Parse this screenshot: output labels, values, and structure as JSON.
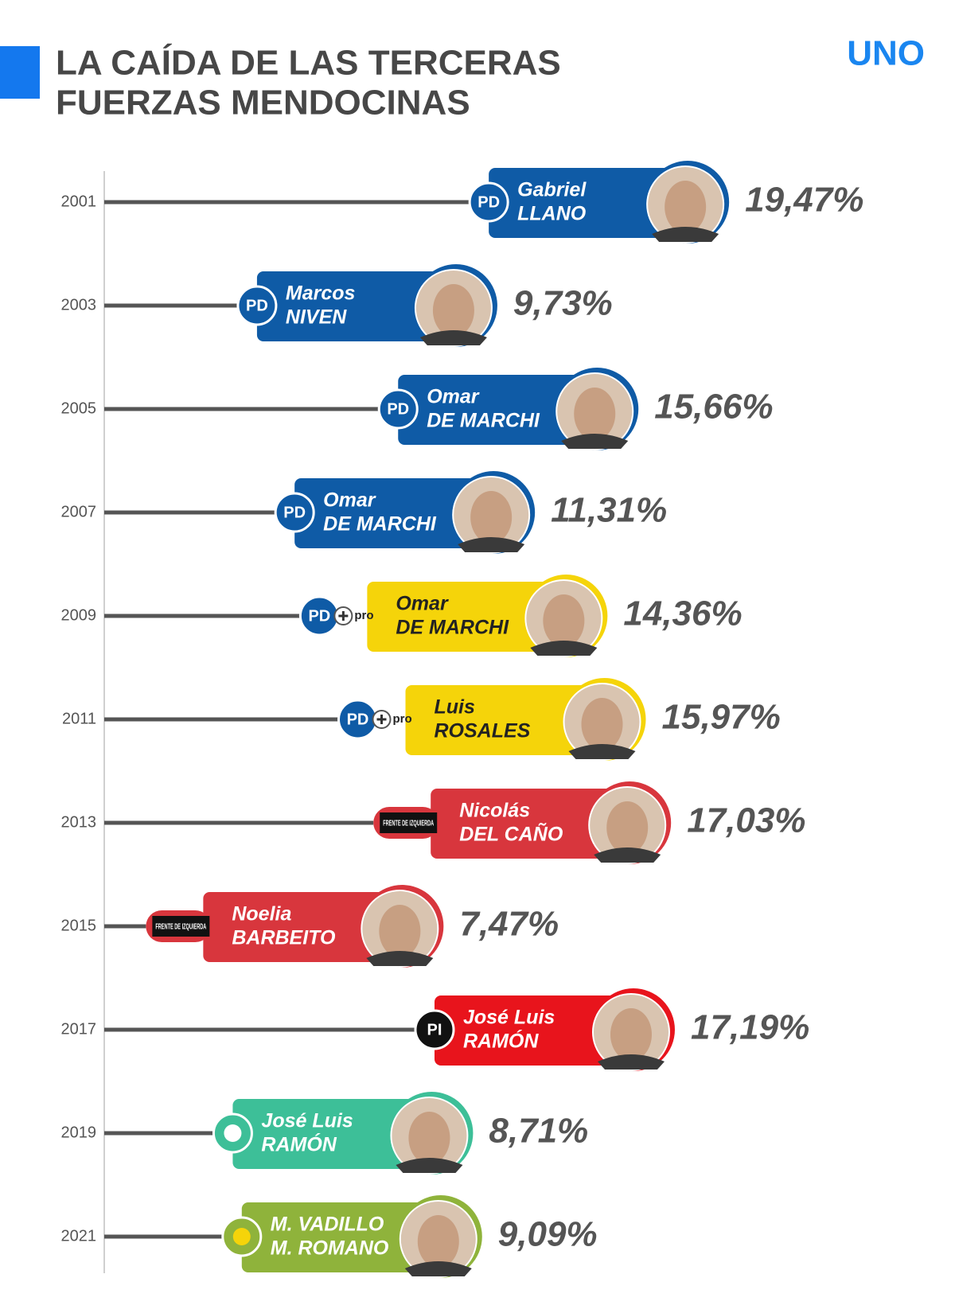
{
  "chart_data": {
    "type": "bar",
    "orientation": "horizontal",
    "title": [
      "LA CAÍDA DE LAS TERCERAS",
      "FUERZAS MENDOCINAS"
    ],
    "brand": "UNO",
    "categories": [
      "2001",
      "2003",
      "2005",
      "2007",
      "2009",
      "2011",
      "2013",
      "2015",
      "2017",
      "2019",
      "2021"
    ],
    "values": [
      19.47,
      9.73,
      15.66,
      11.31,
      14.36,
      15.97,
      17.03,
      7.47,
      17.19,
      8.71,
      9.09
    ],
    "value_labels": [
      "19,47%",
      "9,73%",
      "15,66%",
      "11,31%",
      "14,36%",
      "15,97%",
      "17,03%",
      "7,47%",
      "17,19%",
      "8,71%",
      "9,09%"
    ],
    "candidates": [
      [
        "Gabriel",
        "LLANO"
      ],
      [
        "Marcos",
        "NIVEN"
      ],
      [
        "Omar",
        "DE MARCHI"
      ],
      [
        "Omar",
        "DE MARCHI"
      ],
      [
        "Omar",
        "DE MARCHI"
      ],
      [
        "Luis",
        "ROSALES"
      ],
      [
        "Nicolás",
        "DEL CAÑO"
      ],
      [
        "Noelia",
        "BARBEITO"
      ],
      [
        "José Luis",
        "RAMÓN"
      ],
      [
        "José Luis",
        "RAMÓN"
      ],
      [
        "M. VADILLO",
        "M. ROMANO"
      ]
    ],
    "logos": [
      "PD",
      "PD",
      "PD",
      "PD",
      "PD",
      "PD",
      null,
      null,
      "PI",
      null,
      null
    ],
    "logo_tags": [
      null,
      null,
      null,
      null,
      "pro",
      "pro",
      "FRENTE DE IZQUIERDA",
      "FRENTE DE IZQUIERDA",
      null,
      null,
      null
    ],
    "colors": [
      "#0f5ba6",
      "#0f5ba6",
      "#0f5ba6",
      "#0f5ba6",
      "#f5d40a",
      "#f5d40a",
      "#d8363d",
      "#d8363d",
      "#e8141c",
      "#3dbf98",
      "#8fb33b"
    ],
    "name_colors": [
      "#ffffff",
      "#ffffff",
      "#ffffff",
      "#ffffff",
      "#222222",
      "#222222",
      "#ffffff",
      "#ffffff",
      "#ffffff",
      "#ffffff",
      "#ffffff"
    ]
  }
}
